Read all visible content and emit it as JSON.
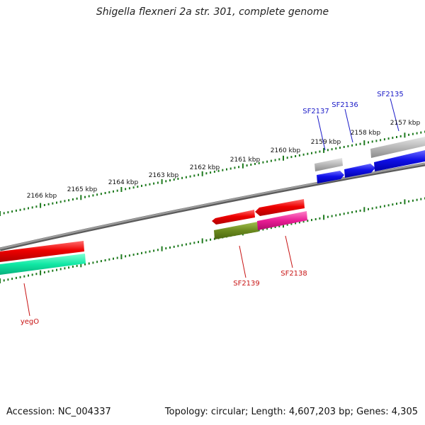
{
  "title": "Shigella flexneri 2a str. 301, complete genome",
  "footer": {
    "accession": "Accession: NC_004337",
    "summary": "Topology: circular; Length: 4,607,203 bp; Genes: 4,305"
  },
  "ruler_labels": [
    "2166 kbp",
    "2165 kbp",
    "2164 kbp",
    "2163 kbp",
    "2162 kbp",
    "2161 kbp",
    "2160 kbp",
    "2159 kbp",
    "2158 kbp",
    "2157 kbp"
  ],
  "gene_labels": {
    "SF2135": "SF2135",
    "SF2136": "SF2136",
    "SF2137": "SF2137",
    "SF2138": "SF2138",
    "SF2139": "SF2139",
    "yegO": "yegO"
  },
  "colors": {
    "backbone": "#7f7f7f",
    "tick": "#1e7a1e",
    "forward_label": "#1a1ac8",
    "reverse_label": "#c81414",
    "blue_gene": "#1010e0",
    "gray_gene": "#a8a8a8",
    "red_gene": "#e00000",
    "olive_gene": "#6b8a1e",
    "pink_gene": "#e01890",
    "teal_gene": "#10e0a0"
  }
}
